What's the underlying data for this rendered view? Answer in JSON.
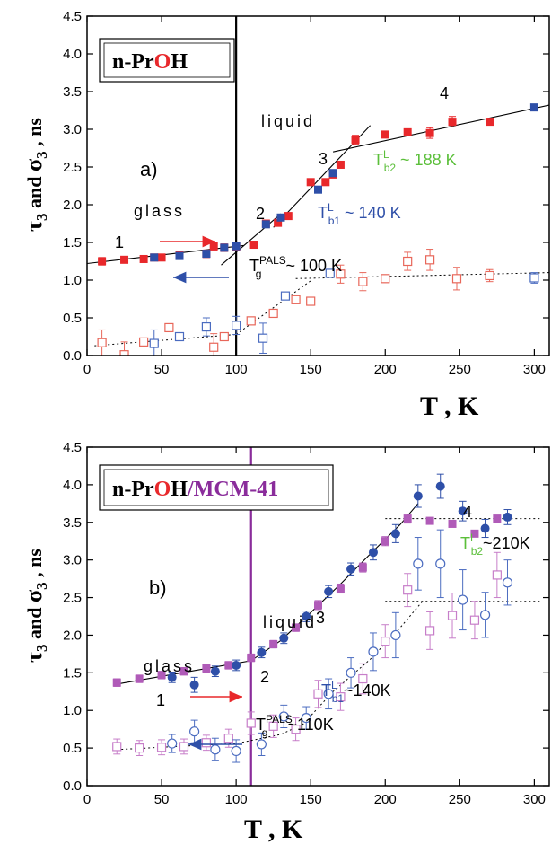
{
  "chart_data": [
    {
      "type": "scatter",
      "panel": "a)",
      "compound": {
        "p1": "n-Pr",
        "p2": "O",
        "p3": "H",
        "p4": ""
      },
      "ylabel": {
        "tau": "τ",
        "tau_sub": "3",
        "and": " and ",
        "sigma": "σ",
        "sigma_sub": "3",
        "unit": " , ns"
      },
      "xlabel": "T , K",
      "xlim": [
        0,
        310
      ],
      "ylim": [
        0,
        4.5
      ],
      "xticks": [
        0,
        50,
        100,
        150,
        200,
        250,
        300
      ],
      "yticks": [
        0.0,
        0.5,
        1.0,
        1.5,
        2.0,
        2.5,
        3.0,
        3.5,
        4.0,
        4.5
      ],
      "tg_line_x": 100,
      "colors": {
        "red": "#e8282b",
        "blue": "#2e4fa8",
        "open_red": "#e8675a",
        "open_blue": "#4b6cc0",
        "green": "#5bbf3a",
        "line": "#000000"
      },
      "series": [
        {
          "marker": "filled-square",
          "color": "red",
          "x": [
            10,
            25,
            38,
            45,
            50,
            62,
            80,
            85,
            92,
            100,
            112,
            120,
            128,
            135,
            150,
            160,
            165,
            170,
            180,
            200,
            215,
            230,
            245,
            270
          ],
          "y": [
            1.25,
            1.27,
            1.28,
            1.3,
            1.3,
            1.33,
            1.35,
            1.45,
            1.43,
            1.44,
            1.47,
            1.75,
            1.76,
            1.85,
            2.3,
            2.3,
            2.4,
            2.53,
            2.86,
            2.93,
            2.96,
            2.95,
            3.1,
            3.1
          ],
          "err": [
            0.05,
            0,
            0,
            0,
            0,
            0,
            0.05,
            0.05,
            0.05,
            0,
            0,
            0,
            0,
            0,
            0,
            0,
            0,
            0,
            0.06,
            0,
            0,
            0.07,
            0.07,
            0
          ]
        },
        {
          "marker": "filled-square",
          "color": "blue",
          "x": [
            45,
            62,
            80,
            92,
            100,
            120,
            130,
            155,
            165,
            300
          ],
          "y": [
            1.3,
            1.32,
            1.35,
            1.43,
            1.45,
            1.74,
            1.83,
            2.2,
            2.42,
            3.29
          ],
          "err": [
            0,
            0,
            0,
            0,
            0,
            0,
            0,
            0,
            0,
            0
          ]
        },
        {
          "marker": "open-square",
          "color": "open_red",
          "x": [
            10,
            25,
            38,
            55,
            85,
            92,
            110,
            125,
            140,
            150,
            170,
            185,
            200,
            215,
            230,
            248,
            270
          ],
          "y": [
            0.17,
            0.01,
            0.18,
            0.37,
            0.11,
            0.25,
            0.46,
            0.56,
            0.74,
            0.72,
            1.08,
            0.98,
            1.02,
            1.25,
            1.27,
            1.02,
            1.06
          ],
          "err": [
            0.17,
            0.17,
            0,
            0,
            0.18,
            0,
            0,
            0,
            0,
            0,
            0.12,
            0.12,
            0,
            0.12,
            0.14,
            0.15,
            0.08
          ]
        },
        {
          "marker": "open-square",
          "color": "open_blue",
          "x": [
            45,
            62,
            80,
            100,
            118,
            133,
            163,
            300
          ],
          "y": [
            0.16,
            0.25,
            0.38,
            0.4,
            0.23,
            0.79,
            1.09,
            1.03
          ],
          "err": [
            0.18,
            0,
            0.12,
            0.12,
            0.2,
            0,
            0,
            0.07
          ]
        }
      ],
      "fit_lines": [
        {
          "points": [
            [
              0,
              1.22
            ],
            [
              105,
              1.46
            ]
          ],
          "style": "solid"
        },
        {
          "points": [
            [
              90,
              1.2
            ],
            [
              130,
              1.88
            ]
          ],
          "style": "solid"
        },
        {
          "points": [
            [
              125,
              1.7
            ],
            [
              190,
              3.05
            ]
          ],
          "style": "solid"
        },
        {
          "points": [
            [
              165,
              2.7
            ],
            [
              310,
              3.32
            ]
          ],
          "style": "solid"
        },
        {
          "points": [
            [
              5,
              0.13
            ],
            [
              100,
              0.28
            ]
          ],
          "style": "dotted"
        },
        {
          "points": [
            [
              100,
              0.28
            ],
            [
              150,
              0.99
            ]
          ],
          "style": "dotted"
        },
        {
          "points": [
            [
              140,
              1.02
            ],
            [
              310,
              1.1
            ]
          ],
          "style": "dotted"
        }
      ],
      "labels": {
        "glass": "glass",
        "liquid": "liquid",
        "panel": "a)",
        "n1": "1",
        "n2": "2",
        "n3": "3",
        "n4": "4",
        "tg": {
          "base": "T",
          "sup": "PALS",
          "sub": "g",
          "rest": " ~ 100 K"
        },
        "tb1": {
          "base": "T",
          "sup": "L",
          "sub": "b1",
          "rest": " ~ 140 K"
        },
        "tb2": {
          "base": "T",
          "sup": "L",
          "sub": "b2",
          "rest": " ~ 188 K"
        }
      }
    },
    {
      "type": "scatter",
      "panel": "b)",
      "compound": {
        "p1": "n-Pr",
        "p2": "O",
        "p3": "H",
        "p4": "/MCM-41"
      },
      "ylabel": {
        "tau": "τ",
        "tau_sub": "3",
        "and": " and ",
        "sigma": "σ",
        "sigma_sub": "3",
        "unit": " , ns"
      },
      "xlabel": "T , K",
      "xlim": [
        0,
        310
      ],
      "ylim": [
        0,
        4.5
      ],
      "xticks": [
        0,
        50,
        100,
        150,
        200,
        250,
        300
      ],
      "yticks": [
        0.0,
        0.5,
        1.0,
        1.5,
        2.0,
        2.5,
        3.0,
        3.5,
        4.0,
        4.5
      ],
      "tg_line_x": 110,
      "colors": {
        "red": "#e8282b",
        "blue": "#2e4fa8",
        "purple": "#b05bb8",
        "open_purple": "#c77ec9",
        "open_blue": "#4b6cc0",
        "green": "#5bbf3a",
        "line": "#000000",
        "tg_line": "#8a2c9b"
      },
      "series": [
        {
          "marker": "filled-square",
          "color": "purple",
          "x": [
            20,
            35,
            50,
            65,
            80,
            95,
            110,
            125,
            140,
            155,
            170,
            185,
            200,
            215,
            230,
            245,
            260,
            275
          ],
          "y": [
            1.37,
            1.42,
            1.47,
            1.52,
            1.56,
            1.6,
            1.7,
            1.88,
            2.1,
            2.4,
            2.62,
            2.9,
            3.25,
            3.55,
            3.52,
            3.48,
            3.35,
            3.55
          ],
          "err": [
            0.05,
            0.05,
            0.05,
            0.05,
            0.05,
            0.05,
            0.05,
            0.05,
            0.05,
            0.06,
            0.06,
            0.06,
            0.06,
            0.06,
            0,
            0,
            0,
            0
          ]
        },
        {
          "marker": "filled-circle",
          "color": "blue",
          "x": [
            57,
            72,
            86,
            100,
            117,
            132,
            147,
            162,
            177,
            192,
            207,
            222,
            237,
            252,
            267,
            282
          ],
          "y": [
            1.44,
            1.34,
            1.52,
            1.6,
            1.77,
            1.96,
            2.25,
            2.58,
            2.88,
            3.1,
            3.35,
            3.85,
            3.98,
            3.65,
            3.42,
            3.57
          ],
          "err": [
            0.07,
            0.1,
            0.07,
            0.07,
            0.07,
            0.07,
            0.07,
            0.08,
            0.08,
            0.1,
            0.12,
            0.15,
            0.16,
            0.13,
            0.12,
            0.1
          ]
        },
        {
          "marker": "open-square",
          "color": "open_purple",
          "x": [
            20,
            35,
            50,
            65,
            80,
            95,
            110,
            125,
            140,
            155,
            170,
            185,
            200,
            215,
            230,
            245,
            260,
            275
          ],
          "y": [
            0.52,
            0.5,
            0.51,
            0.52,
            0.57,
            0.63,
            0.83,
            0.79,
            0.75,
            1.22,
            1.18,
            1.42,
            1.92,
            2.6,
            2.06,
            2.26,
            2.2,
            2.8
          ],
          "err": [
            0.1,
            0.1,
            0.1,
            0.1,
            0.1,
            0.12,
            0.15,
            0.15,
            0.15,
            0.18,
            0.18,
            0.2,
            0.22,
            0.22,
            0.25,
            0.3,
            0.25,
            0.3
          ]
        },
        {
          "marker": "open-circle",
          "color": "open_blue",
          "x": [
            57,
            72,
            86,
            100,
            117,
            132,
            147,
            162,
            177,
            192,
            207,
            222,
            237,
            252,
            267,
            282
          ],
          "y": [
            0.56,
            0.72,
            0.48,
            0.46,
            0.55,
            0.92,
            0.9,
            1.22,
            1.5,
            1.78,
            2.0,
            2.95,
            2.95,
            2.47,
            2.27,
            2.7
          ],
          "err": [
            0.12,
            0.15,
            0.15,
            0.15,
            0.15,
            0.15,
            0.15,
            0.2,
            0.2,
            0.25,
            0.3,
            0.35,
            0.45,
            0.4,
            0.3,
            0.3
          ]
        }
      ],
      "fit_lines": [
        {
          "points": [
            [
              20,
              1.35
            ],
            [
              110,
              1.66
            ],
            [
              130,
              1.93
            ],
            [
              150,
              2.3
            ],
            [
              170,
              2.68
            ],
            [
              190,
              3.08
            ],
            [
              210,
              3.47
            ],
            [
              222,
              3.75
            ]
          ],
          "style": "solid"
        },
        {
          "points": [
            [
              20,
              0.48
            ],
            [
              100,
              0.56
            ],
            [
              130,
              0.68
            ],
            [
              145,
              0.82
            ],
            [
              165,
              1.25
            ],
            [
              190,
              1.68
            ],
            [
              210,
              2.1
            ],
            [
              225,
              2.45
            ]
          ],
          "style": "dotted"
        },
        {
          "points": [
            [
              200,
              3.55
            ],
            [
              305,
              3.55
            ]
          ],
          "style": "dotted"
        },
        {
          "points": [
            [
              200,
              2.45
            ],
            [
              305,
              2.45
            ]
          ],
          "style": "dotted"
        }
      ],
      "labels": {
        "glass": "glass",
        "liquid": "liquid",
        "panel": "b)",
        "n1": "1",
        "n2": "2",
        "n3": "3",
        "n4": "4",
        "tg": {
          "base": "T",
          "sup": "PALS",
          "sub": "g",
          "rest": "~110K"
        },
        "tb1": {
          "base": "T",
          "sup": "L",
          "sub": "b1",
          "rest": "~140K"
        },
        "tb2": {
          "base": "T",
          "sup": "L",
          "sub": "b2",
          "rest": "~210K"
        }
      }
    }
  ]
}
